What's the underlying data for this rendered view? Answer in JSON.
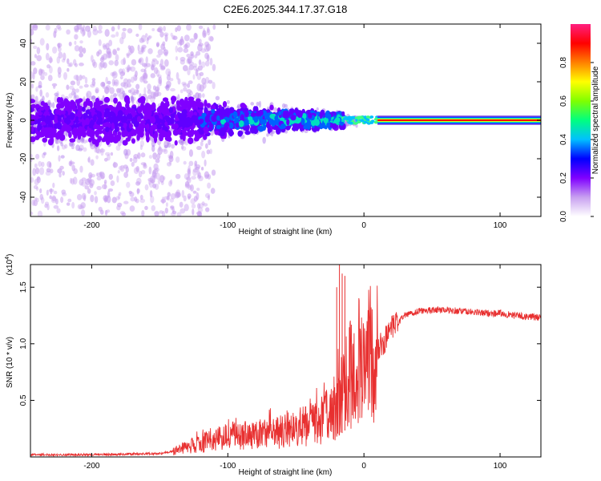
{
  "title": "C2E6.2025.344.17.37.G18",
  "chart_data": [
    {
      "type": "heatmap",
      "name": "spectrogram",
      "xlabel": "Height of straight line (km)",
      "ylabel": "Frequency (Hz)",
      "xlim": [
        -245,
        130
      ],
      "ylim": [
        -50,
        50
      ],
      "xticks": [
        -200,
        -100,
        0,
        100
      ],
      "yticks": [
        -40,
        -20,
        0,
        20,
        40
      ],
      "xtick_labels": [
        "-200",
        "-100",
        "0",
        "100"
      ],
      "ytick_labels": [
        "-40",
        "-20",
        "0",
        "20",
        "40"
      ],
      "colorbar": {
        "label": "Normalized spectral amplitude",
        "range": [
          0,
          1
        ],
        "ticks": [
          0.0,
          0.2,
          0.4,
          0.6,
          0.8
        ],
        "tick_labels": [
          "0.0",
          "0.2",
          "0.4",
          "0.6",
          "0.8"
        ],
        "colors": [
          "#ffffff",
          "#c8a0f0",
          "#8000ff",
          "#0000ff",
          "#00c0ff",
          "#00ff80",
          "#80ff00",
          "#ffff00",
          "#ff8000",
          "#ff0000",
          "#ff2080"
        ]
      },
      "features": [
        {
          "description": "diffuse scattered noise",
          "x_range": [
            -245,
            -130
          ],
          "freq_spread_hz": 50,
          "amplitude": 0.05
        },
        {
          "description": "broad noisy band",
          "x_range": [
            -245,
            -120
          ],
          "freq_spread_hz": 12,
          "amplitude": 0.15
        },
        {
          "description": "narrowing band",
          "x_range": [
            -120,
            -15
          ],
          "freq_spread_hz": [
            10,
            4
          ],
          "amplitude": [
            0.25,
            0.4
          ]
        },
        {
          "description": "steady carrier line",
          "x_range": [
            10,
            130
          ],
          "frequency_hz": 0,
          "amplitude": 1.0
        }
      ]
    },
    {
      "type": "line",
      "name": "snr",
      "xlabel": "Height of straight line (km)",
      "ylabel": "SNR (10 * v/v)",
      "y_multiplier_label": "(x10",
      "y_multiplier_exp": "4",
      "xlim": [
        -245,
        130
      ],
      "ylim": [
        0,
        1.7
      ],
      "xticks": [
        -200,
        -100,
        0,
        100
      ],
      "yticks": [
        0.5,
        1.0,
        1.5
      ],
      "xtick_labels": [
        "-200",
        "-100",
        "0",
        "100"
      ],
      "ytick_labels": [
        "0.5",
        "1.0",
        "1.5"
      ],
      "color": "#e83030",
      "series": [
        {
          "name": "SNR",
          "x": [
            -245,
            -200,
            -150,
            -140,
            -120,
            -100,
            -80,
            -60,
            -40,
            -30,
            -20,
            -15,
            -12,
            -10,
            -5,
            0,
            5,
            10,
            15,
            20,
            30,
            40,
            50,
            60,
            70,
            80,
            90,
            100,
            110,
            120,
            130
          ],
          "y": [
            0.02,
            0.02,
            0.03,
            0.05,
            0.12,
            0.18,
            0.2,
            0.22,
            0.28,
            0.35,
            0.45,
            0.55,
            0.65,
            0.75,
            0.82,
            0.88,
            0.92,
            0.95,
            1.02,
            1.12,
            1.25,
            1.29,
            1.3,
            1.3,
            1.29,
            1.28,
            1.27,
            1.27,
            1.25,
            1.24,
            1.23
          ]
        }
      ],
      "spikes": [
        {
          "x": -18,
          "y": 1.7
        },
        {
          "x": -16,
          "y": 1.62
        },
        {
          "x": -14,
          "y": 1.6
        },
        {
          "x": -20,
          "y": 1.5
        }
      ]
    }
  ]
}
